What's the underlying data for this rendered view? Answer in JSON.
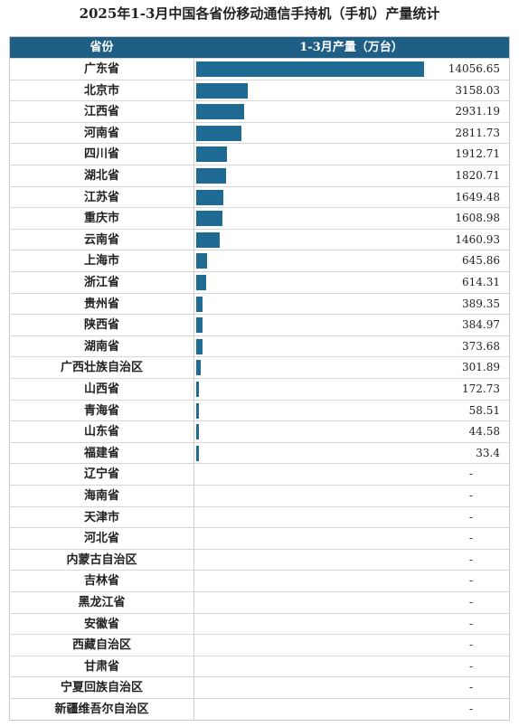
{
  "title": "2025年1-3月中国各省份移动通信手持机（手机）产量统计",
  "header": {
    "province": "省份",
    "value": "1-3月产量（万台）"
  },
  "chart_data": {
    "type": "bar",
    "orientation": "horizontal",
    "title": "2025年1-3月中国各省份移动通信手持机（手机）产量统计",
    "xlabel": "1-3月产量（万台）",
    "ylabel": "省份",
    "rows": [
      {
        "name": "广东省",
        "value": 14056.65,
        "label": "14056.65"
      },
      {
        "name": "北京市",
        "value": 3158.03,
        "label": "3158.03"
      },
      {
        "name": "江西省",
        "value": 2931.19,
        "label": "2931.19"
      },
      {
        "name": "河南省",
        "value": 2811.73,
        "label": "2811.73"
      },
      {
        "name": "四川省",
        "value": 1912.71,
        "label": "1912.71"
      },
      {
        "name": "湖北省",
        "value": 1820.71,
        "label": "1820.71"
      },
      {
        "name": "江苏省",
        "value": 1649.48,
        "label": "1649.48"
      },
      {
        "name": "重庆市",
        "value": 1608.98,
        "label": "1608.98"
      },
      {
        "name": "云南省",
        "value": 1460.93,
        "label": "1460.93"
      },
      {
        "name": "上海市",
        "value": 645.86,
        "label": "645.86"
      },
      {
        "name": "浙江省",
        "value": 614.31,
        "label": "614.31"
      },
      {
        "name": "贵州省",
        "value": 389.35,
        "label": "389.35"
      },
      {
        "name": "陕西省",
        "value": 384.97,
        "label": "384.97"
      },
      {
        "name": "湖南省",
        "value": 373.68,
        "label": "373.68"
      },
      {
        "name": "广西壮族自治区",
        "value": 301.89,
        "label": "301.89"
      },
      {
        "name": "山西省",
        "value": 172.73,
        "label": "172.73"
      },
      {
        "name": "青海省",
        "value": 58.51,
        "label": "58.51"
      },
      {
        "name": "山东省",
        "value": 44.58,
        "label": "44.58"
      },
      {
        "name": "福建省",
        "value": 33.4,
        "label": "33.4"
      },
      {
        "name": "辽宁省",
        "value": null,
        "label": "-"
      },
      {
        "name": "海南省",
        "value": null,
        "label": "-"
      },
      {
        "name": "天津市",
        "value": null,
        "label": "-"
      },
      {
        "name": "河北省",
        "value": null,
        "label": "-"
      },
      {
        "name": "内蒙古自治区",
        "value": null,
        "label": "-"
      },
      {
        "name": "吉林省",
        "value": null,
        "label": "-"
      },
      {
        "name": "黑龙江省",
        "value": null,
        "label": "-"
      },
      {
        "name": "安徽省",
        "value": null,
        "label": "-"
      },
      {
        "name": "西藏自治区",
        "value": null,
        "label": "-"
      },
      {
        "name": "甘肃省",
        "value": null,
        "label": "-"
      },
      {
        "name": "宁夏回族自治区",
        "value": null,
        "label": "-"
      },
      {
        "name": "新疆维吾尔自治区",
        "value": null,
        "label": "-"
      }
    ]
  },
  "colors": {
    "header_bg": "#1f5f86",
    "bar": "#1f6a93"
  }
}
